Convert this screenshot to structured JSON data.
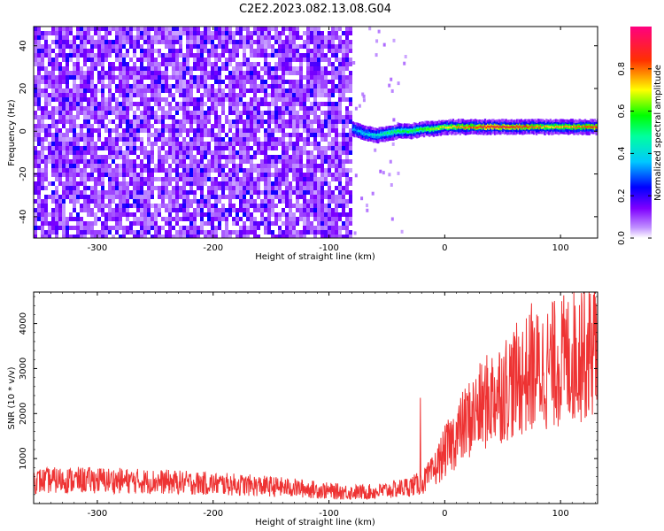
{
  "figure": {
    "title": "C2E2.2023.082.13.08.G04"
  },
  "chart_data": [
    {
      "type": "heatmap",
      "name": "spectrogram",
      "xlabel": "Height of straight line (km)",
      "ylabel": "Frequency (Hz)",
      "xlim": [
        -355,
        132
      ],
      "ylim": [
        -50,
        49
      ],
      "xticks": [
        -300,
        -200,
        -100,
        0,
        100
      ],
      "yticks": [
        -40,
        -20,
        0,
        20,
        40
      ],
      "grid": false,
      "colorbar": {
        "label": "Normalized spectral amplitude",
        "range": [
          0,
          1
        ],
        "ticks": [
          "0.0",
          "0.2",
          "0.4",
          "0.6",
          "0.8"
        ],
        "colors": [
          "#ffffff",
          "#7f00ff",
          "#0000ff",
          "#00ffff",
          "#00ff00",
          "#ffff00",
          "#ff0000",
          "#ff00ff"
        ]
      },
      "noise_region": {
        "x_range": [
          -355,
          -80
        ],
        "y_range": [
          -50,
          49
        ],
        "typical_amplitude": 0.25,
        "color": "#7a1fe6"
      },
      "signal_trace": {
        "x": [
          -80,
          -70,
          -60,
          -50,
          -40,
          -30,
          -20,
          -10,
          0,
          20,
          40,
          60,
          80,
          90,
          100,
          120,
          132
        ],
        "y": [
          1,
          -1,
          -2,
          -1,
          0,
          0,
          1,
          1,
          2,
          2,
          2,
          2,
          2,
          2,
          2,
          2,
          2
        ],
        "amplitude": [
          0.35,
          0.4,
          0.45,
          0.5,
          0.55,
          0.55,
          0.6,
          0.65,
          0.7,
          0.8,
          0.9,
          0.85,
          0.8,
          0.7,
          0.75,
          0.8,
          0.85
        ]
      }
    },
    {
      "type": "line",
      "name": "snr",
      "xlabel": "Height of straight line (km)",
      "ylabel": "SNR (10 * v/v)",
      "xlim": [
        -355,
        132
      ],
      "ylim": [
        0,
        4700
      ],
      "xticks": [
        -300,
        -200,
        -100,
        0,
        100
      ],
      "yticks": [
        1000,
        2000,
        3000,
        4000
      ],
      "grid": false,
      "series": [
        {
          "color": "#ee3333",
          "x": [
            -355,
            -330,
            -300,
            -270,
            -240,
            -210,
            -180,
            -150,
            -120,
            -100,
            -80,
            -60,
            -40,
            -20,
            -10,
            0,
            10,
            20,
            30,
            40,
            50,
            60,
            70,
            80,
            90,
            100,
            110,
            120,
            132
          ],
          "y": [
            500,
            520,
            520,
            500,
            480,
            450,
            420,
            380,
            330,
            280,
            250,
            260,
            330,
            450,
            700,
            1150,
            1500,
            1850,
            2100,
            2350,
            2550,
            2700,
            2850,
            2950,
            3050,
            3150,
            3250,
            3400,
            3550
          ],
          "spikes": [
            {
              "x": -21,
              "y": 2350
            },
            {
              "x": 75,
              "y": 4450
            },
            {
              "x": 118,
              "y": 4680
            },
            {
              "x": 95,
              "y": 4150
            }
          ]
        }
      ]
    }
  ]
}
